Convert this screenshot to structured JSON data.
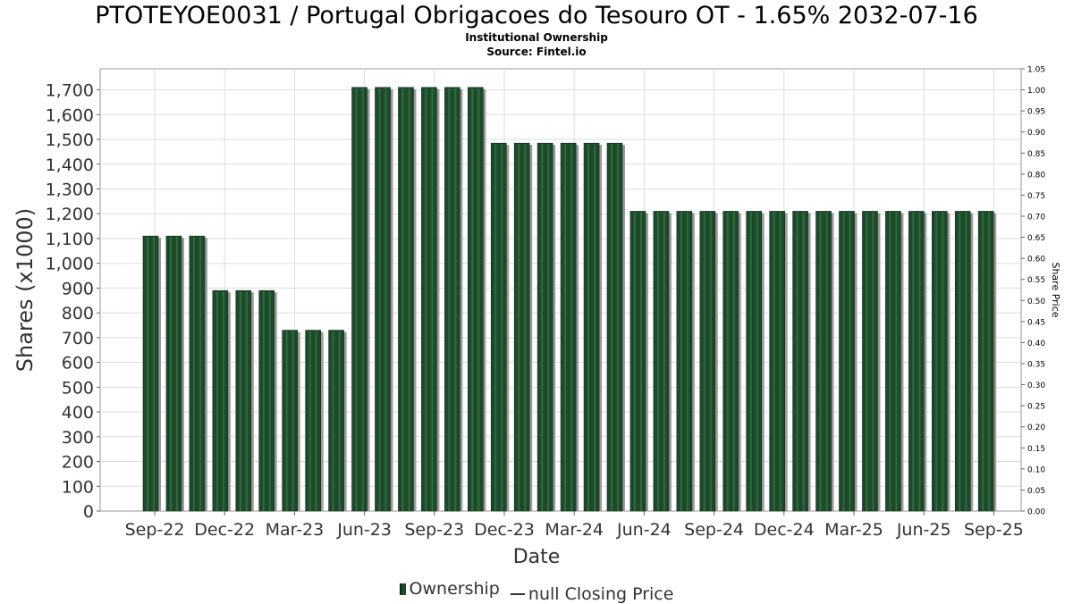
{
  "header": {
    "title": "PTOTEYOE0031 / Portugal Obrigacoes do Tesouro OT - 1.65% 2032-07-16",
    "subtitle": "Institutional Ownership",
    "source": "Source: Fintel.io"
  },
  "legend": {
    "ownership_label": "Ownership",
    "price_label": "null Closing Price"
  },
  "colors": {
    "bar": "#1e4a2c",
    "bar_stripe": "#2f6b3e",
    "bar_shadow": "#9a9a9a",
    "grid": "#dddddd",
    "plot_border": "#999999"
  },
  "chart_data": {
    "type": "bar",
    "title": "PTOTEYOE0031 / Portugal Obrigacoes do Tesouro OT - 1.65% 2032-07-16",
    "xlabel": "Date",
    "ylabel": "Shares (x1000)",
    "y2label": "Share Price",
    "ylim": [
      0,
      1785
    ],
    "y2lim": [
      0,
      1.05
    ],
    "yticks": [
      0,
      100,
      200,
      300,
      400,
      500,
      600,
      700,
      800,
      900,
      1000,
      1100,
      1200,
      1300,
      1400,
      1500,
      1600,
      1700
    ],
    "ytick_labels": [
      "0",
      "100",
      "200",
      "300",
      "400",
      "500",
      "600",
      "700",
      "800",
      "900",
      "1,000",
      "1,100",
      "1,200",
      "1,300",
      "1,400",
      "1,500",
      "1,600",
      "1,700"
    ],
    "y2ticks": [
      0,
      0.05,
      0.1,
      0.15,
      0.2,
      0.25,
      0.3,
      0.35,
      0.4,
      0.45,
      0.5,
      0.55,
      0.6,
      0.65,
      0.7,
      0.75,
      0.8,
      0.85,
      0.9,
      0.95,
      1.0,
      1.05
    ],
    "y2tick_labels": [
      "0.00",
      "0.05",
      "0.10",
      "0.15",
      "0.20",
      "0.25",
      "0.30",
      "0.35",
      "0.40",
      "0.45",
      "0.50",
      "0.55",
      "0.60",
      "0.65",
      "0.70",
      "0.75",
      "0.80",
      "0.85",
      "0.90",
      "0.95",
      "1.00",
      "1.05"
    ],
    "x_tick_labels": [
      "Sep-22",
      "Dec-22",
      "Mar-23",
      "Jun-23",
      "Sep-23",
      "Dec-23",
      "Mar-24",
      "Jun-24",
      "Sep-24",
      "Dec-24",
      "Mar-25",
      "Jun-25",
      "Sep-25"
    ],
    "grid": true,
    "legend_position": "bottom",
    "series": [
      {
        "name": "Ownership",
        "values": [
          1110,
          1110,
          1110,
          890,
          890,
          890,
          730,
          730,
          730,
          1710,
          1710,
          1710,
          1710,
          1710,
          1710,
          1485,
          1485,
          1485,
          1485,
          1485,
          1485,
          1210,
          1210,
          1210,
          1210,
          1210,
          1210,
          1210,
          1210,
          1210,
          1210,
          1210,
          1210,
          1210,
          1210,
          1210,
          1210
        ]
      },
      {
        "name": "null Closing Price",
        "values": []
      }
    ]
  }
}
